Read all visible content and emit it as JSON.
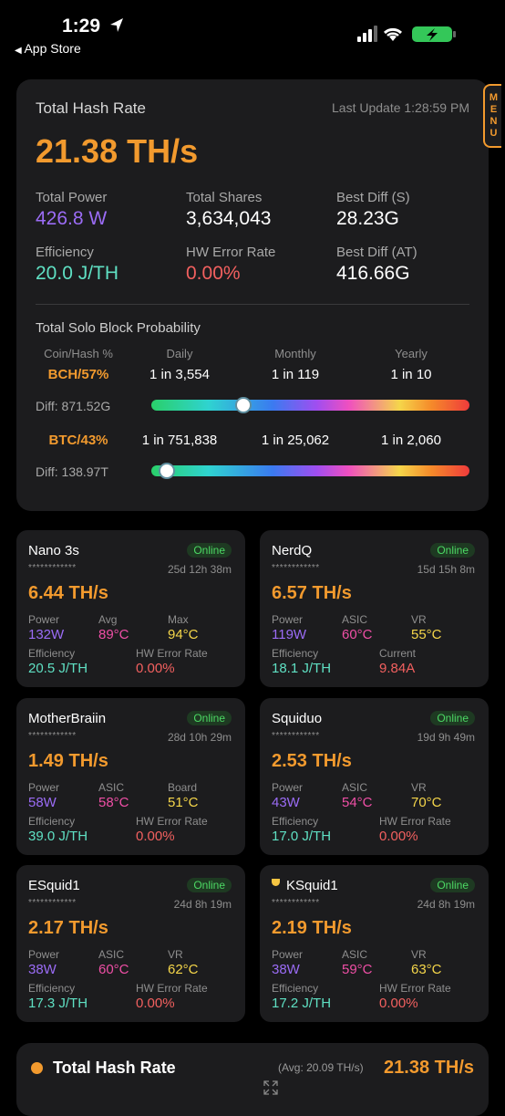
{
  "status_bar": {
    "time": "1:29",
    "back": "App Store"
  },
  "summary": {
    "title": "Total Hash Rate",
    "last_update": "Last Update 1:28:59 PM",
    "hash_rate": "21.38 TH/s",
    "menu": "MENU",
    "stats": [
      {
        "label": "Total Power",
        "value": "426.8 W",
        "color": "#9b6cf6"
      },
      {
        "label": "Total Shares",
        "value": "3,634,043",
        "color": "#ffffff"
      },
      {
        "label": "Best Diff (S)",
        "value": "28.23G",
        "color": "#ffffff"
      },
      {
        "label": "Efficiency",
        "value": "20.0 J/TH",
        "color": "#5fe0c3"
      },
      {
        "label": "HW Error Rate",
        "value": "0.00%",
        "color": "#f2605f"
      },
      {
        "label": "Best Diff (AT)",
        "value": "416.66G",
        "color": "#ffffff"
      }
    ],
    "probability": {
      "title": "Total Solo Block Probability",
      "headers": [
        "Coin/Hash %",
        "Daily",
        "Monthly",
        "Yearly"
      ],
      "rows": [
        {
          "coin": "BCH/57%",
          "daily": "1 in 3,554",
          "monthly": "1 in 119",
          "yearly": "1 in 10",
          "diff": "Diff: 871.52G"
        },
        {
          "coin": "BTC/43%",
          "daily": "1 in 751,838",
          "monthly": "1 in 25,062",
          "yearly": "1 in 2,060",
          "diff": "Diff: 138.97T"
        }
      ]
    }
  },
  "miners": [
    {
      "name": "Nano 3s",
      "status": "Online",
      "masked": "************",
      "uptime": "25d 12h 38m",
      "hash_rate": "6.44 TH/s",
      "metrics": [
        {
          "label": "Power",
          "value": "132W",
          "color": "#9b6cf6"
        },
        {
          "label": "Avg",
          "value": "89°C",
          "color": "#ef4fa6"
        },
        {
          "label": "Max",
          "value": "94°C",
          "color": "#f5d64a"
        },
        {
          "label": "Efficiency",
          "value": "20.5 J/TH",
          "color": "#5fe0c3"
        },
        {
          "label": "HW Error Rate",
          "value": "0.00%",
          "color": "#f2605f"
        }
      ]
    },
    {
      "name": "NerdQ",
      "status": "Online",
      "masked": "************",
      "uptime": "15d 15h 8m",
      "hash_rate": "6.57 TH/s",
      "metrics": [
        {
          "label": "Power",
          "value": "119W",
          "color": "#9b6cf6"
        },
        {
          "label": "ASIC",
          "value": "60°C",
          "color": "#ef4fa6"
        },
        {
          "label": "VR",
          "value": "55°C",
          "color": "#f5d64a"
        },
        {
          "label": "Efficiency",
          "value": "18.1 J/TH",
          "color": "#5fe0c3"
        },
        {
          "label": "Current",
          "value": "9.84A",
          "color": "#f2605f"
        }
      ]
    },
    {
      "name": "MotherBraiin",
      "status": "Online",
      "masked": "************",
      "uptime": "28d 10h 29m",
      "hash_rate": "1.49 TH/s",
      "metrics": [
        {
          "label": "Power",
          "value": "58W",
          "color": "#9b6cf6"
        },
        {
          "label": "ASIC",
          "value": "58°C",
          "color": "#ef4fa6"
        },
        {
          "label": "Board",
          "value": "51°C",
          "color": "#f5d64a"
        },
        {
          "label": "Efficiency",
          "value": "39.0 J/TH",
          "color": "#5fe0c3"
        },
        {
          "label": "HW Error Rate",
          "value": "0.00%",
          "color": "#f2605f"
        }
      ]
    },
    {
      "name": "Squiduo",
      "status": "Online",
      "masked": "************",
      "uptime": "19d 9h 49m",
      "hash_rate": "2.53 TH/s",
      "metrics": [
        {
          "label": "Power",
          "value": "43W",
          "color": "#9b6cf6"
        },
        {
          "label": "ASIC",
          "value": "54°C",
          "color": "#ef4fa6"
        },
        {
          "label": "VR",
          "value": "70°C",
          "color": "#f5d64a"
        },
        {
          "label": "Efficiency",
          "value": "17.0 J/TH",
          "color": "#5fe0c3"
        },
        {
          "label": "HW Error Rate",
          "value": "0.00%",
          "color": "#f2605f"
        }
      ]
    },
    {
      "name": "ESquid1",
      "status": "Online",
      "masked": "************",
      "uptime": "24d 8h 19m",
      "hash_rate": "2.17 TH/s",
      "metrics": [
        {
          "label": "Power",
          "value": "38W",
          "color": "#9b6cf6"
        },
        {
          "label": "ASIC",
          "value": "60°C",
          "color": "#ef4fa6"
        },
        {
          "label": "VR",
          "value": "62°C",
          "color": "#f5d64a"
        },
        {
          "label": "Efficiency",
          "value": "17.3 J/TH",
          "color": "#5fe0c3"
        },
        {
          "label": "HW Error Rate",
          "value": "0.00%",
          "color": "#f2605f"
        }
      ]
    },
    {
      "name": "KSquid1",
      "trophy": true,
      "status": "Online",
      "masked": "************",
      "uptime": "24d 8h 19m",
      "hash_rate": "2.19 TH/s",
      "metrics": [
        {
          "label": "Power",
          "value": "38W",
          "color": "#9b6cf6"
        },
        {
          "label": "ASIC",
          "value": "59°C",
          "color": "#ef4fa6"
        },
        {
          "label": "VR",
          "value": "63°C",
          "color": "#f5d64a"
        },
        {
          "label": "Efficiency",
          "value": "17.2 J/TH",
          "color": "#5fe0c3"
        },
        {
          "label": "HW Error Rate",
          "value": "0.00%",
          "color": "#f2605f"
        }
      ]
    }
  ],
  "footer": {
    "title": "Total Hash Rate",
    "avg": "(Avg: 20.09 TH/s)",
    "hash_rate": "21.38 TH/s"
  }
}
